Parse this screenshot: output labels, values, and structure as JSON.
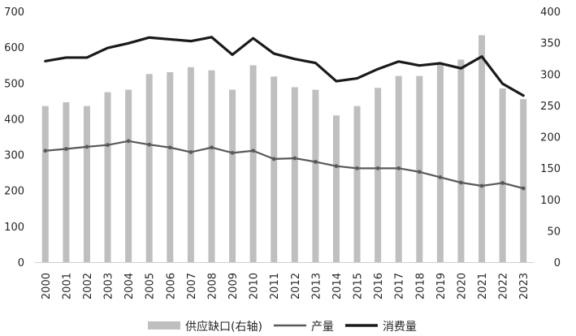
{
  "chart_data": {
    "type": "bar-line-combo",
    "categories": [
      "2000",
      "2001",
      "2002",
      "2003",
      "2004",
      "2005",
      "2006",
      "2007",
      "2008",
      "2009",
      "2010",
      "2011",
      "2012",
      "2013",
      "2014",
      "2015",
      "2016",
      "2017",
      "2018",
      "2019",
      "2020",
      "2021",
      "2022",
      "2023"
    ],
    "y_left": {
      "range": [
        0,
        700
      ],
      "ticks": [
        "0",
        "100",
        "200",
        "300",
        "400",
        "500",
        "600",
        "700"
      ]
    },
    "y_right": {
      "range": [
        0,
        400
      ],
      "ticks": [
        "0",
        "50",
        "100",
        "150",
        "200",
        "250",
        "300",
        "350",
        "400"
      ]
    },
    "grid": false,
    "legend_position": "bottom",
    "series": [
      {
        "name": "供应缺口(右轴)",
        "kind": "bar",
        "axis": "right",
        "color": "#bfbfbf",
        "values": [
          249,
          255,
          249,
          271,
          275,
          300,
          303,
          311,
          306,
          275,
          314,
          296,
          279,
          275,
          234,
          249,
          278,
          297,
          297,
          316,
          323,
          362,
          277,
          260
        ]
      },
      {
        "name": "产量",
        "kind": "line",
        "axis": "left",
        "color": "#595959",
        "marker": "dot",
        "values": [
          311,
          316,
          322,
          327,
          338,
          328,
          320,
          307,
          320,
          305,
          311,
          288,
          290,
          280,
          268,
          262,
          262,
          262,
          252,
          237,
          222,
          213,
          221,
          206
        ]
      },
      {
        "name": "消费量",
        "kind": "line",
        "axis": "left",
        "color": "#1a1a1a",
        "values": [
          561,
          571,
          571,
          598,
          611,
          627,
          622,
          617,
          628,
          579,
          625,
          582,
          567,
          556,
          505,
          513,
          539,
          560,
          549,
          555,
          541,
          574,
          498,
          465
        ]
      }
    ]
  }
}
